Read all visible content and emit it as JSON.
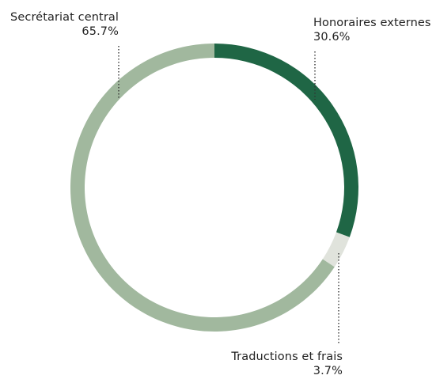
{
  "chart_data": {
    "type": "pie",
    "style": "donut",
    "slices": [
      {
        "label": "Honoraires externes",
        "value": 30.6,
        "display": "30.6%",
        "color": "#1f6645"
      },
      {
        "label": "Traductions et frais",
        "value": 3.7,
        "display": "3.7%",
        "color": "#e0e3dc"
      },
      {
        "label": "Secrétariat central",
        "value": 65.7,
        "display": "65.7%",
        "color": "#a1b89e"
      }
    ],
    "start": "top",
    "direction": "clockwise"
  }
}
